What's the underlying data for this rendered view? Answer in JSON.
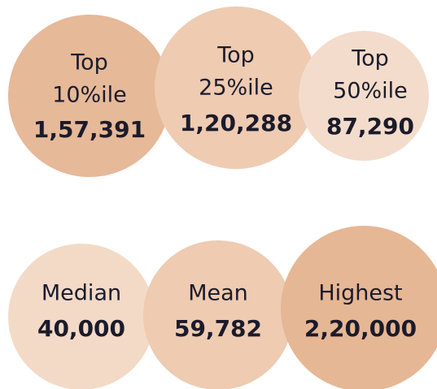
{
  "items": [
    {
      "lines": [
        "Top",
        "10%ile"
      ],
      "value": "1,57,391"
    },
    {
      "lines": [
        "Top",
        "25%ile"
      ],
      "value": "1,20,288"
    },
    {
      "lines": [
        "Top",
        "50%ile"
      ],
      "value": "87,290"
    },
    {
      "lines": [
        "Median"
      ],
      "value": "40,000"
    },
    {
      "lines": [
        "Mean"
      ],
      "value": "59,782"
    },
    {
      "lines": [
        "Highest"
      ],
      "value": "2,20,000"
    }
  ]
}
